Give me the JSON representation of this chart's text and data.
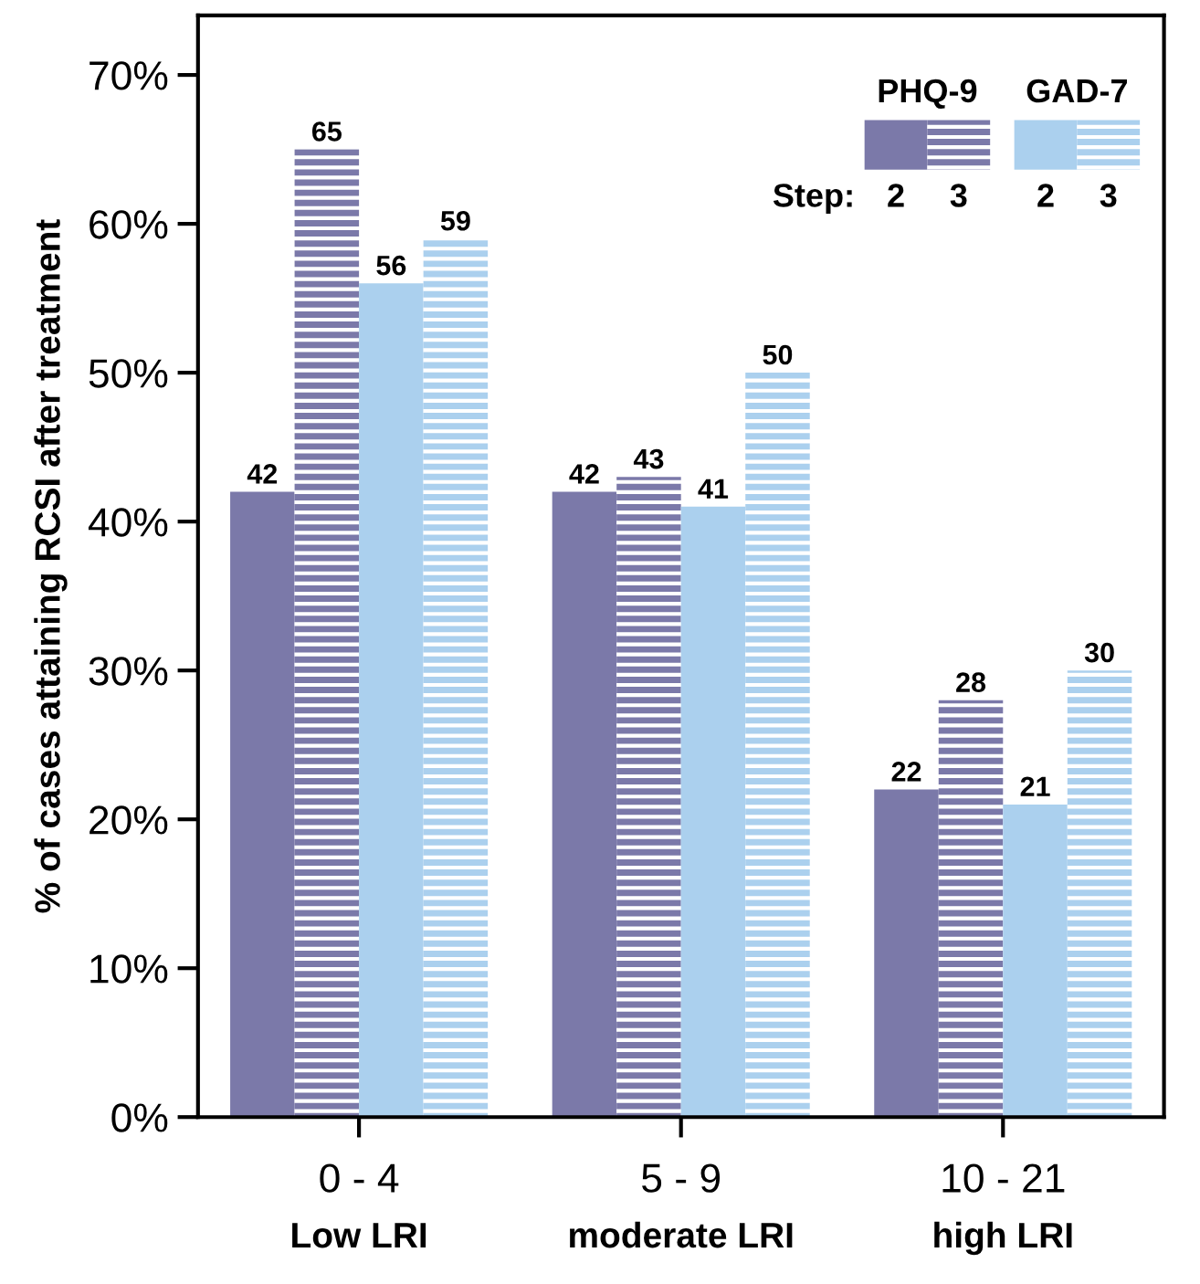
{
  "chart_data": {
    "type": "bar",
    "ylabel": "% of cases attaining RCSI after treatment",
    "categories": [
      "0 - 4\nLow LRI",
      "5 - 9\nmoderate LRI",
      "10 - 21\nhigh LRI"
    ],
    "series": [
      {
        "name": "2",
        "color": "#7b79a9",
        "values": [
          42,
          42,
          22
        ]
      },
      {
        "name": "3",
        "color": "#7b79a9",
        "values": [
          65,
          43,
          28
        ]
      },
      {
        "name": "2",
        "color": "#abd0ee",
        "values": [
          56,
          41,
          21
        ]
      },
      {
        "name": "3",
        "color": "#abd0ee",
        "values": [
          59,
          50,
          30
        ]
      }
    ],
    "legend_title": "Step:",
    "annotations": [
      "PHQ-9",
      "GAD-7"
    ],
    "legend": "top right",
    "ylim": [
      0,
      74
    ],
    "yticks": [
      {
        "value": 0,
        "label": "0%"
      },
      {
        "value": 10,
        "label": "10%"
      },
      {
        "value": 20,
        "label": "20%"
      },
      {
        "value": 30,
        "label": "30%"
      },
      {
        "value": 40,
        "label": "40%"
      },
      {
        "value": 50,
        "label": "50%"
      },
      {
        "value": 60,
        "label": "60%"
      },
      {
        "value": 70,
        "label": "70%"
      }
    ],
    "data_labels": true,
    "grid": false
  }
}
